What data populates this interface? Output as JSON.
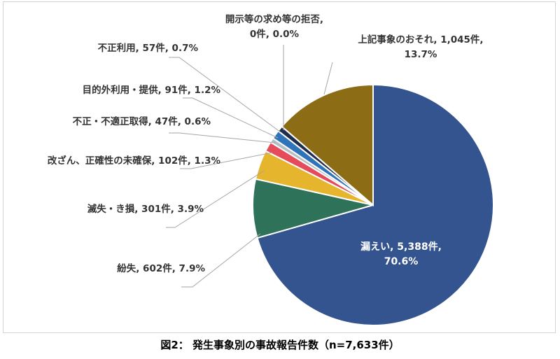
{
  "caption": "図2： 発生事象別の事故報告件数（n=7,633件）",
  "chart_data": {
    "type": "pie",
    "title": "",
    "total": 7633,
    "start_angle_deg": 0,
    "direction": "clockwise",
    "slices": [
      {
        "name": "漏えい",
        "count": 5388,
        "percent": 70.6,
        "color": "#34548f",
        "label_lines": [
          "漏えい, 5,388件,",
          "70.6%"
        ]
      },
      {
        "name": "紛失",
        "count": 602,
        "percent": 7.9,
        "color": "#2e7259",
        "label_lines": [
          "紛失, 602件, 7.9%"
        ]
      },
      {
        "name": "滅失・き損",
        "count": 301,
        "percent": 3.9,
        "color": "#e6b52e",
        "label_lines": [
          "滅失・き損, 301件, 3.9%"
        ]
      },
      {
        "name": "改ざん、正確性の未確保",
        "count": 102,
        "percent": 1.3,
        "color": "#e64b5c",
        "label_lines": [
          "改ざん、正確性の未確保, 102件, 1.3%"
        ]
      },
      {
        "name": "不正・不適正取得",
        "count": 47,
        "percent": 0.6,
        "color": "#b3bec4",
        "label_lines": [
          "不正・不適正取得, 47件, 0.6%"
        ]
      },
      {
        "name": "目的外利用・提供",
        "count": 91,
        "percent": 1.2,
        "color": "#2f73b8",
        "label_lines": [
          "目的外利用・提供, 91件, 1.2%"
        ]
      },
      {
        "name": "不正利用",
        "count": 57,
        "percent": 0.7,
        "color": "#1f2e4d",
        "label_lines": [
          "不正利用, 57件, 0.7%"
        ]
      },
      {
        "name": "開示等の求め等の拒否",
        "count": 0,
        "percent": 0.0,
        "color": "#888888",
        "label_lines": [
          "開示等の求め等の拒否,",
          "0件, 0.0%"
        ]
      },
      {
        "name": "上記事象のおそれ",
        "count": 1045,
        "percent": 13.7,
        "color": "#8c6c14",
        "label_lines": [
          "上記事象のおそれ, 1,045件,",
          "13.7%"
        ]
      }
    ]
  }
}
